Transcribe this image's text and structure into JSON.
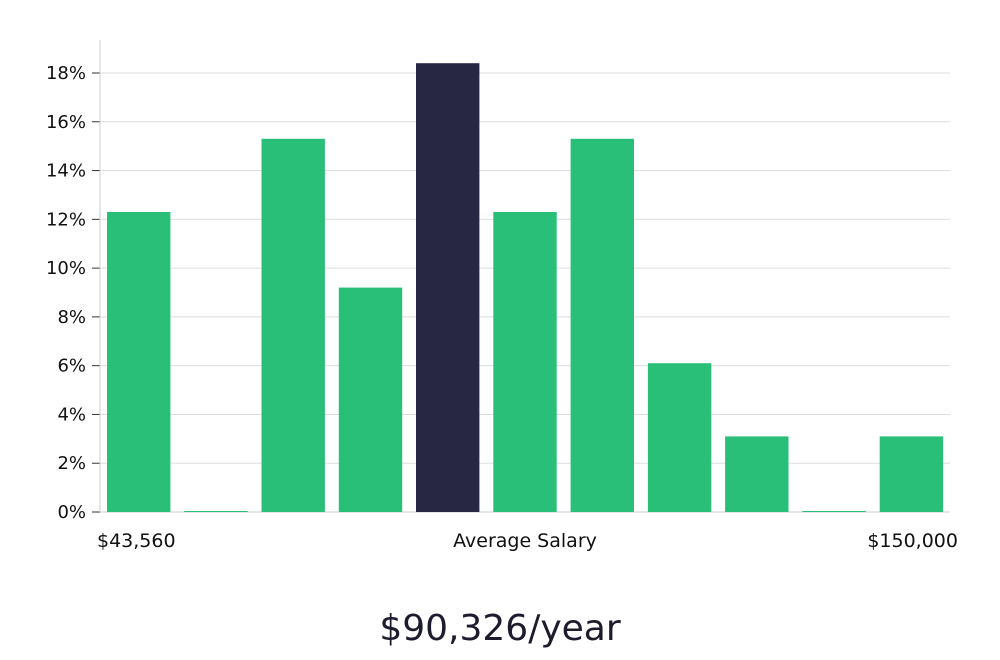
{
  "chart_data": {
    "type": "bar",
    "categories": [
      "1",
      "2",
      "3",
      "4",
      "5",
      "6",
      "7",
      "8",
      "9",
      "10",
      "11"
    ],
    "values": [
      12.3,
      0,
      15.3,
      9.2,
      18.4,
      12.3,
      15.3,
      6.1,
      3.1,
      0,
      3.1
    ],
    "highlight_index": 4,
    "ylim": [
      0,
      18
    ],
    "yticks": [
      "0%",
      "2%",
      "4%",
      "6%",
      "8%",
      "10%",
      "12%",
      "14%",
      "16%",
      "18%"
    ],
    "ytick_values": [
      0,
      2,
      4,
      6,
      8,
      10,
      12,
      14,
      16,
      18
    ],
    "x_min_label": "$43,560",
    "x_center_label": "Average Salary",
    "x_max_label": "$150,000",
    "grid": true,
    "colors": {
      "bar": "#2abf78",
      "highlight": "#272643",
      "grid": "#dddddd",
      "axis": "#cccccc"
    }
  },
  "summary": {
    "salary": "$90,326/year"
  }
}
